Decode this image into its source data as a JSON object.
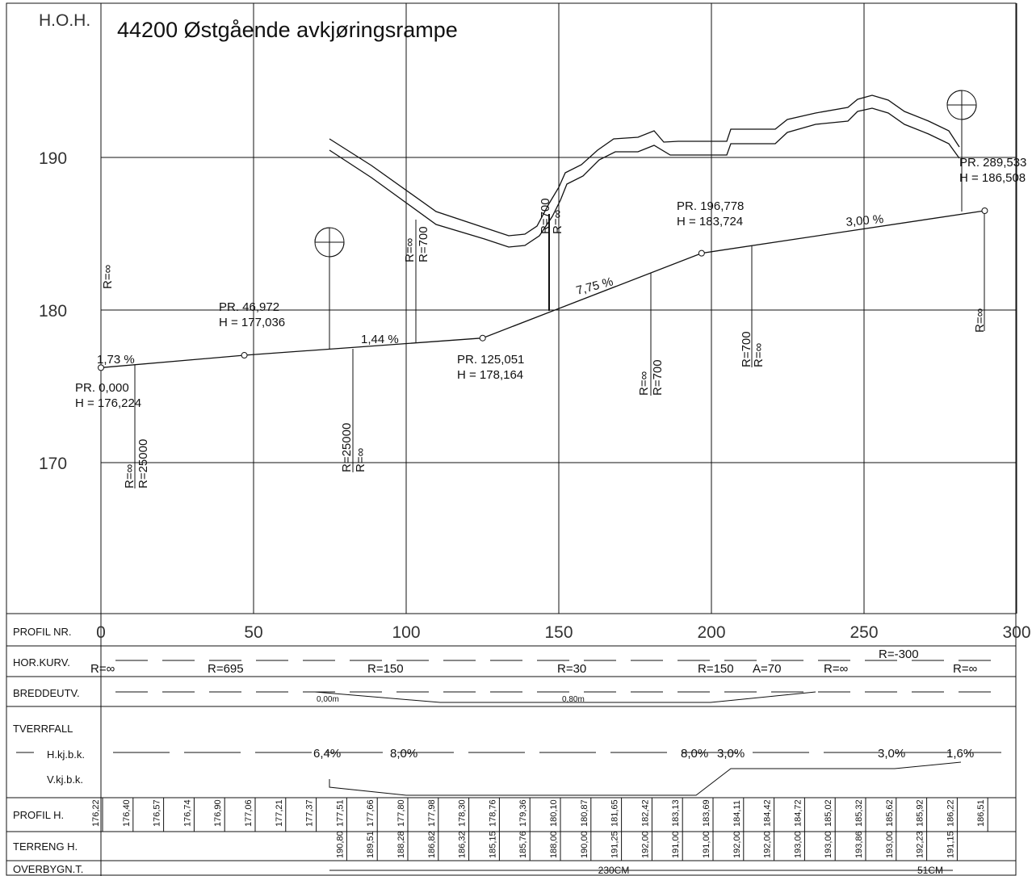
{
  "title": "44200 Østgående avkjøringsrampe",
  "axis_label": "H.O.H.",
  "height_ticks": [
    {
      "value": 190,
      "label": "190"
    },
    {
      "value": 180,
      "label": "180"
    },
    {
      "value": 170,
      "label": "170"
    }
  ],
  "profile_ticks": [
    {
      "value": 0,
      "label": "0"
    },
    {
      "value": 50,
      "label": "50"
    },
    {
      "value": 100,
      "label": "100"
    },
    {
      "value": 150,
      "label": "150"
    },
    {
      "value": 200,
      "label": "200"
    },
    {
      "value": 250,
      "label": "250"
    },
    {
      "value": 300,
      "label": "300"
    }
  ],
  "profile_points": [
    {
      "station": 0,
      "height": 176.224,
      "pr": "PR. 0,000",
      "h": "H = 176,224"
    },
    {
      "station": 46.972,
      "height": 177.036,
      "pr": "PR. 46,972",
      "h": "H = 177,036"
    },
    {
      "station": 125.051,
      "height": 178.164,
      "pr": "PR. 125,051",
      "h": "H = 178,164"
    },
    {
      "station": 196.778,
      "height": 183.724,
      "pr": "PR. 196,778",
      "h": "H = 183,724"
    },
    {
      "station": 289.533,
      "height": 186.508,
      "pr": "PR. 289,533",
      "h": "H = 186,508"
    }
  ],
  "grades": [
    "1,73 %",
    "1,44 %",
    "7,75 %",
    "3,00 %"
  ],
  "curve_labels": [
    "R=∞",
    "R=∞",
    "R=25000",
    "R=25000",
    "R=∞",
    "R=∞",
    "R=700",
    "R=700",
    "R=∞",
    "R=∞",
    "R=700",
    "R=700",
    "R=∞",
    "R=∞"
  ],
  "table": {
    "headers": [
      "PROFIL NR.",
      "HOR.KURV.",
      "BREDDEUTV.",
      "TVERRFALL",
      "H.kj.b.k.",
      "V.kj.b.k.",
      "PROFIL H.",
      "TERRENG H.",
      "OVERBYGN.T."
    ],
    "hor_kurv": [
      "R=∞",
      "R=695",
      "R=150",
      "R=30",
      "R=150",
      "A=70",
      "R=∞",
      "R=-300",
      "R=∞"
    ],
    "breddeutv": [
      "0,00m",
      "0,80m"
    ],
    "tverrfall": [
      "6,4%",
      "8,0%",
      "8,0%",
      "3,0%",
      "3,0%",
      "1,6%"
    ],
    "profil_h": [
      "176,22",
      "176,40",
      "176,57",
      "176,74",
      "176,90",
      "177,06",
      "177,21",
      "177,37",
      "177,51",
      "177,66",
      "177,80",
      "177,98",
      "178,30",
      "178,76",
      "179,36",
      "180,10",
      "180,87",
      "181,65",
      "182,42",
      "183,13",
      "183,69",
      "184,11",
      "184,42",
      "184,72",
      "185,02",
      "185,32",
      "185,62",
      "185,92",
      "186,22",
      "186,51"
    ],
    "terreng_h": [
      "190,80",
      "189,51",
      "188,28",
      "186,82",
      "186,32",
      "185,15",
      "185,76",
      "188,00",
      "190,00",
      "191,25",
      "192,00",
      "191,00",
      "191,00",
      "192,00",
      "192,00",
      "193,00",
      "193,00",
      "193,86",
      "193,00",
      "192,23",
      "191,15"
    ],
    "overbygn": [
      "230CM",
      "51CM"
    ]
  }
}
